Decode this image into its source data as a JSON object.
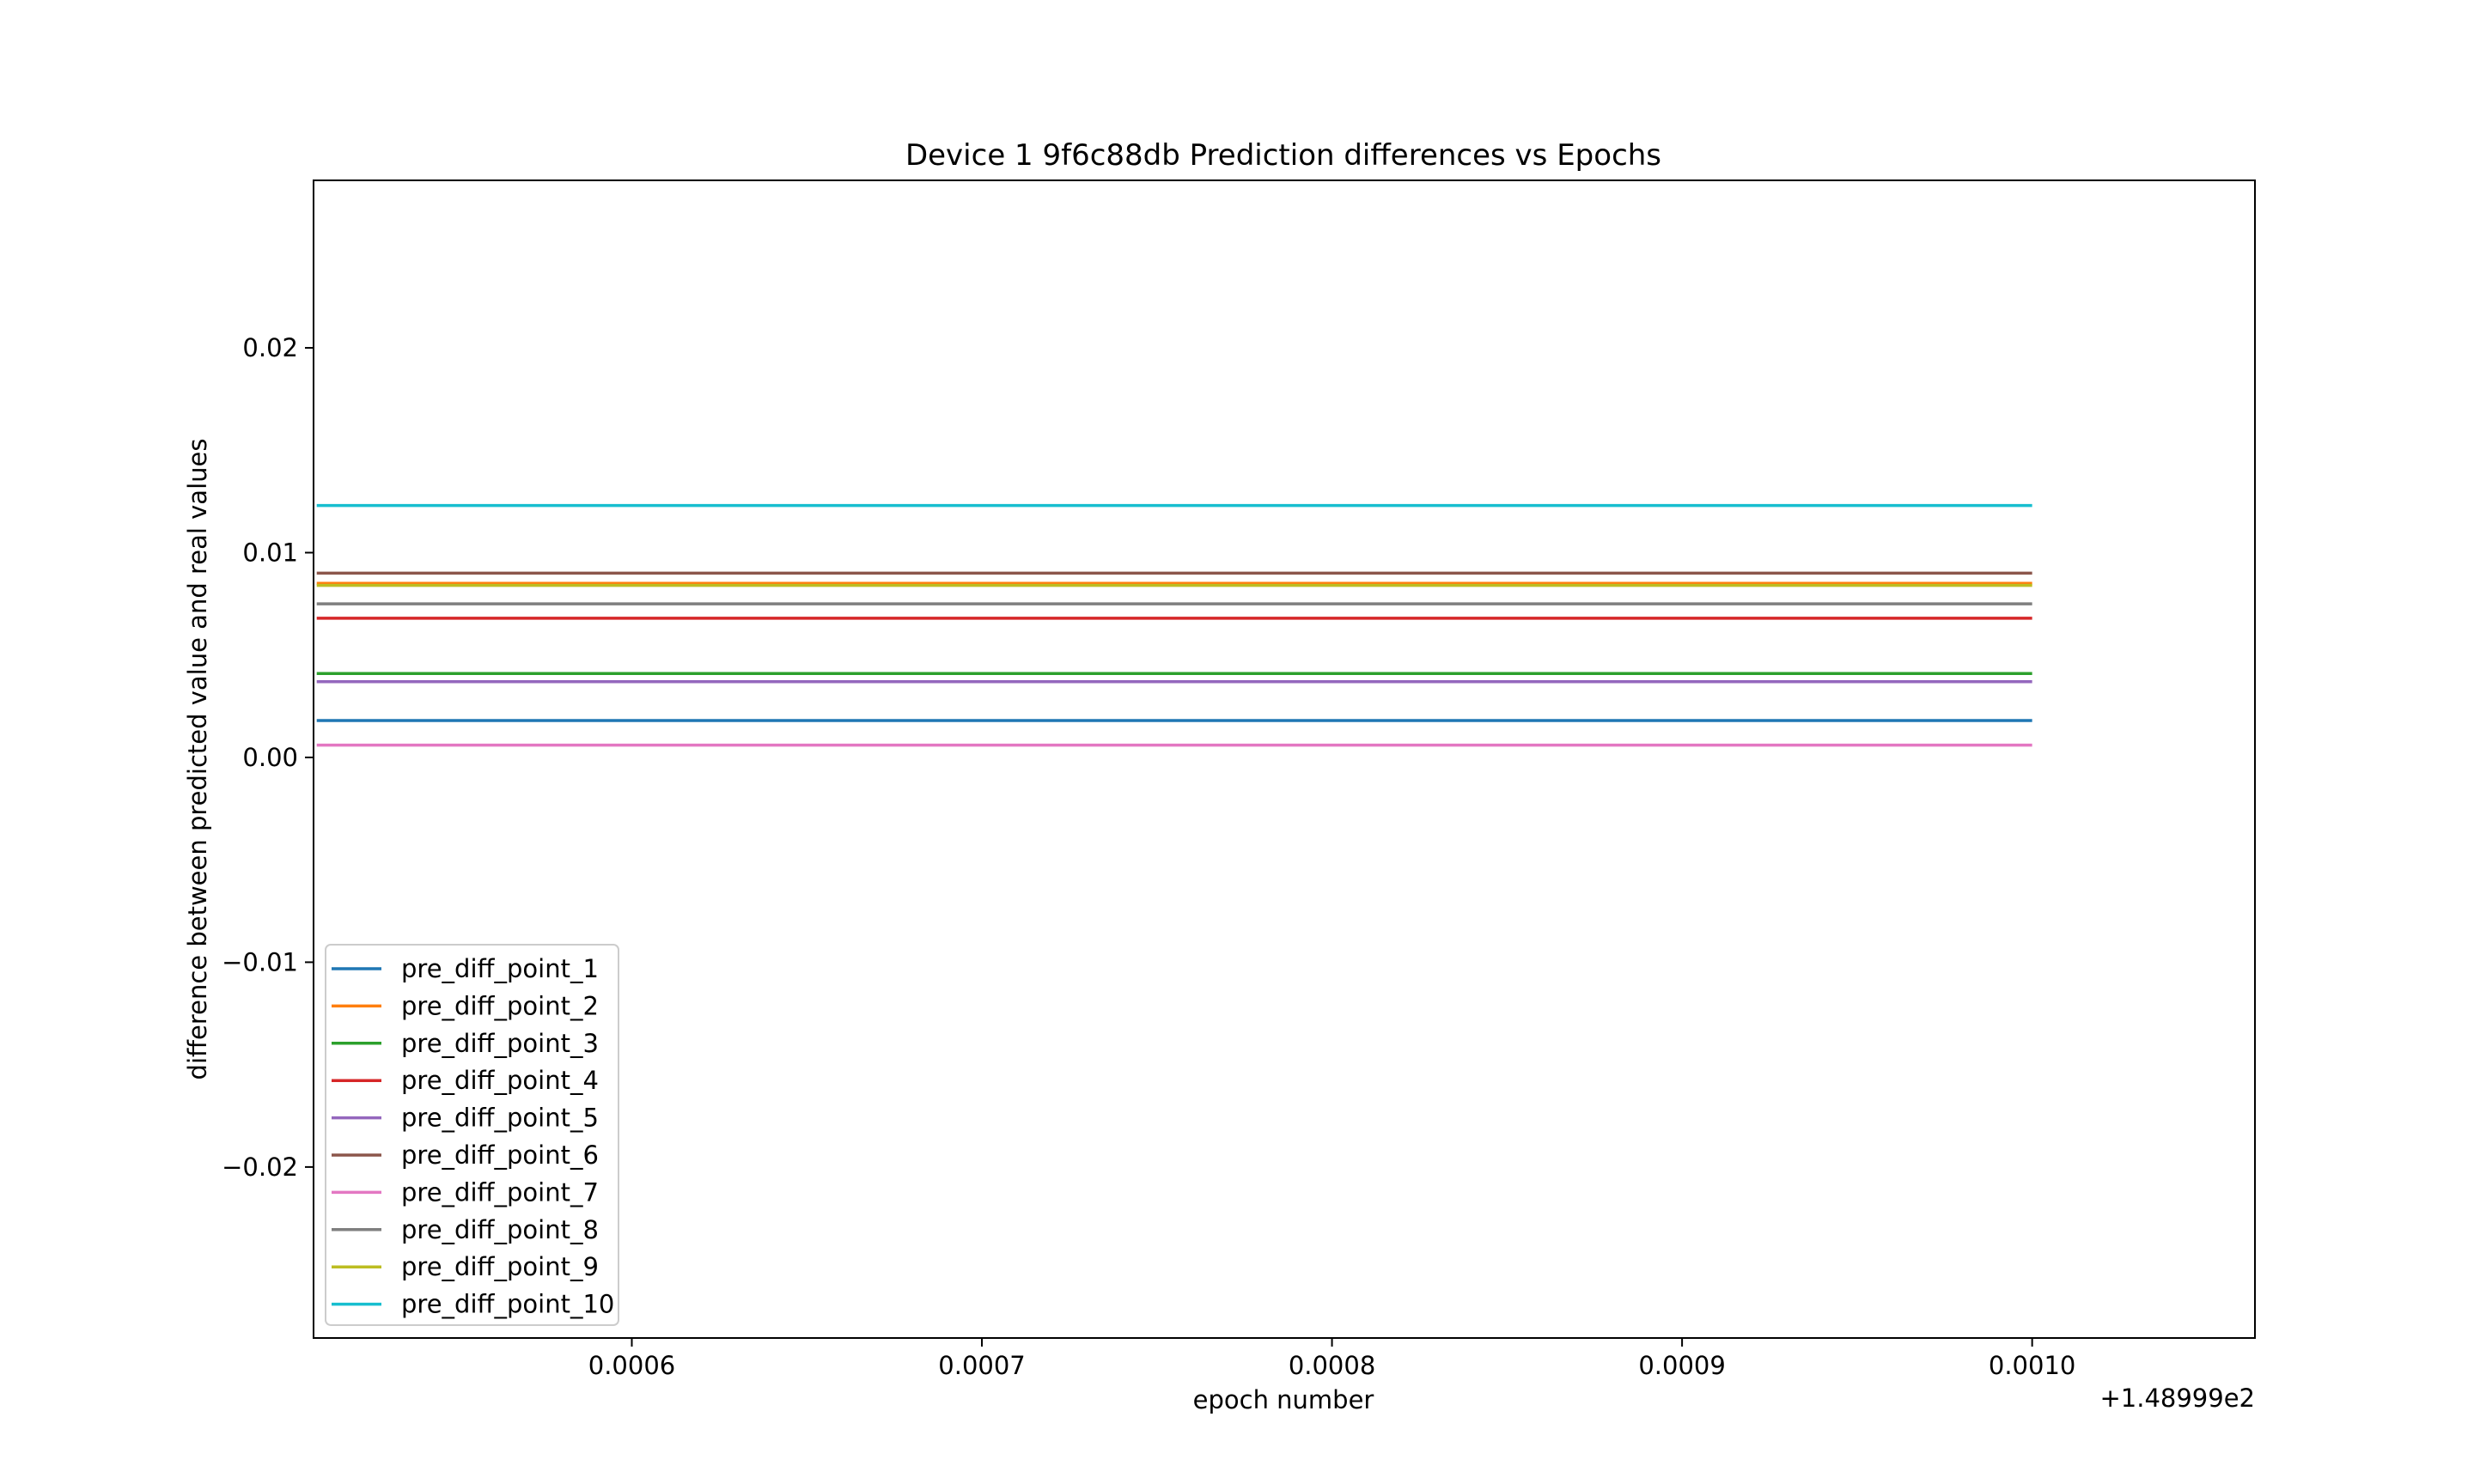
{
  "chart_data": {
    "type": "line",
    "title": "Device 1 9f6c88db Prediction differences vs Epochs",
    "xlabel": "epoch number",
    "ylabel": "difference between predicted value and real values",
    "x_offset_label": "+1.48999e2",
    "xlim": [
      0.00050909,
      0.00106364
    ],
    "ylim": [
      -0.02835,
      0.02818
    ],
    "x_start": 0.00051,
    "x_end": 0.001,
    "x_ticks": [
      {
        "value": 0.0006,
        "label": "0.0006"
      },
      {
        "value": 0.0007,
        "label": "0.0007"
      },
      {
        "value": 0.0008,
        "label": "0.0008"
      },
      {
        "value": 0.0009,
        "label": "0.0009"
      },
      {
        "value": 0.001,
        "label": "0.0010"
      }
    ],
    "y_ticks": [
      {
        "value": 0.02,
        "label": "0.02"
      },
      {
        "value": 0.01,
        "label": "0.01"
      },
      {
        "value": 0.0,
        "label": "0.00"
      },
      {
        "value": -0.01,
        "label": "−0.01"
      },
      {
        "value": -0.02,
        "label": "−0.02"
      }
    ],
    "grid": false,
    "legend_position": "lower-left",
    "series": [
      {
        "name": "pre_diff_point_1",
        "color": "#1f77b4",
        "values": [
          0.0018,
          0.0018
        ]
      },
      {
        "name": "pre_diff_point_2",
        "color": "#ff7f0e",
        "values": [
          0.0085,
          0.0085
        ]
      },
      {
        "name": "pre_diff_point_3",
        "color": "#2ca02c",
        "values": [
          0.0041,
          0.0041
        ]
      },
      {
        "name": "pre_diff_point_4",
        "color": "#d62728",
        "values": [
          0.0068,
          0.0068
        ]
      },
      {
        "name": "pre_diff_point_5",
        "color": "#9467bd",
        "values": [
          0.0037,
          0.0037
        ]
      },
      {
        "name": "pre_diff_point_6",
        "color": "#8c564b",
        "values": [
          0.009,
          0.009
        ]
      },
      {
        "name": "pre_diff_point_7",
        "color": "#e377c2",
        "values": [
          0.0006,
          0.0006
        ]
      },
      {
        "name": "pre_diff_point_8",
        "color": "#7f7f7f",
        "values": [
          0.0075,
          0.0075
        ]
      },
      {
        "name": "pre_diff_point_9",
        "color": "#bcbd22",
        "values": [
          0.0084,
          0.0084
        ]
      },
      {
        "name": "pre_diff_point_10",
        "color": "#17becf",
        "values": [
          0.0123,
          0.0123
        ]
      }
    ]
  }
}
